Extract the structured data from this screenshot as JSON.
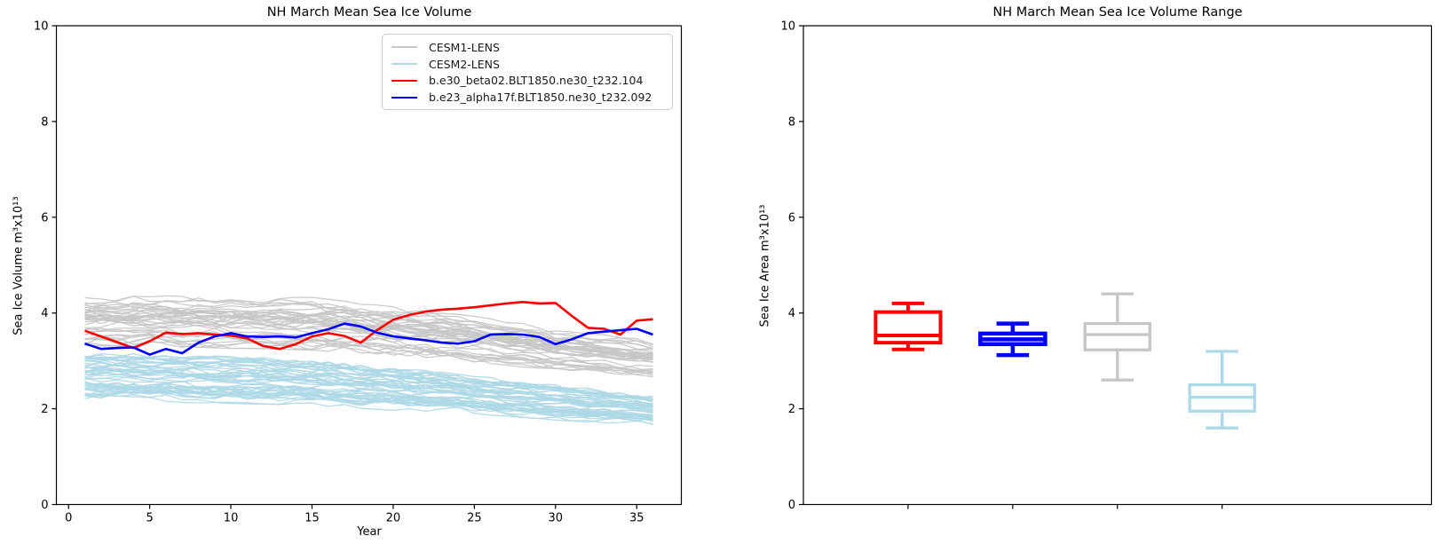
{
  "figure": {
    "background": "#ffffff"
  },
  "chart_data": [
    {
      "type": "line",
      "title": "NH March Mean Sea Ice Volume",
      "xlabel": "Year",
      "ylabel": "Sea Ice Volume m³x10¹³",
      "xlim": [
        -0.75,
        37.75
      ],
      "ylim": [
        0,
        10
      ],
      "xticks": [
        0,
        5,
        10,
        15,
        20,
        25,
        30,
        35
      ],
      "yticks": [
        0,
        2,
        4,
        6,
        8,
        10
      ],
      "grid": false,
      "legend_position": "upper right",
      "years": [
        1,
        2,
        3,
        4,
        5,
        6,
        7,
        8,
        9,
        10,
        11,
        12,
        13,
        14,
        15,
        16,
        17,
        18,
        19,
        20,
        21,
        22,
        23,
        24,
        25,
        26,
        27,
        28,
        29,
        30,
        31,
        32,
        33,
        34,
        35,
        36
      ],
      "series": [
        {
          "name": "CESM1-LENS",
          "kind": "ensemble",
          "color": "#c6c6c6",
          "members": 40,
          "band_min": [
            3.3,
            3.29,
            3.29,
            3.28,
            3.28,
            3.27,
            3.26,
            3.26,
            3.25,
            3.24,
            3.24,
            3.23,
            3.22,
            3.21,
            3.2,
            3.18,
            3.16,
            3.14,
            3.12,
            3.1,
            3.08,
            3.05,
            3.03,
            3.0,
            2.96,
            2.92,
            2.89,
            2.85,
            2.83,
            2.8,
            2.78,
            2.75,
            2.73,
            2.7,
            2.68,
            2.65
          ],
          "band_max": [
            4.4,
            4.4,
            4.39,
            4.39,
            4.38,
            4.38,
            4.37,
            4.37,
            4.36,
            4.36,
            4.36,
            4.35,
            4.35,
            4.35,
            4.35,
            4.31,
            4.27,
            4.23,
            4.19,
            4.15,
            4.11,
            4.07,
            4.04,
            4.0,
            3.95,
            3.9,
            3.85,
            3.8,
            3.75,
            3.7,
            3.65,
            3.6,
            3.56,
            3.52,
            3.48,
            3.45
          ]
        },
        {
          "name": "CESM2-LENS",
          "kind": "ensemble",
          "color": "#ADD8E6",
          "members": 50,
          "band_min": [
            2.15,
            2.14,
            2.14,
            2.13,
            2.12,
            2.12,
            2.11,
            2.1,
            2.1,
            2.09,
            2.08,
            2.08,
            2.07,
            2.06,
            2.05,
            2.03,
            2.01,
            1.99,
            1.97,
            1.95,
            1.94,
            1.93,
            1.91,
            1.9,
            1.88,
            1.85,
            1.83,
            1.8,
            1.78,
            1.75,
            1.73,
            1.7,
            1.69,
            1.68,
            1.66,
            1.65
          ],
          "band_max": [
            3.2,
            3.19,
            3.18,
            3.17,
            3.16,
            3.15,
            3.14,
            3.13,
            3.12,
            3.11,
            3.1,
            3.09,
            3.08,
            3.06,
            3.05,
            3.02,
            2.99,
            2.96,
            2.93,
            2.9,
            2.86,
            2.82,
            2.79,
            2.75,
            2.71,
            2.67,
            2.64,
            2.6,
            2.56,
            2.52,
            2.49,
            2.45,
            2.41,
            2.37,
            2.34,
            2.3
          ]
        },
        {
          "name": "b.e30_beta02.BLT1850.ne30_t232.104",
          "kind": "line",
          "color": "#ff0000",
          "values": [
            3.63,
            3.51,
            3.39,
            3.27,
            3.41,
            3.59,
            3.56,
            3.58,
            3.55,
            3.53,
            3.47,
            3.31,
            3.25,
            3.35,
            3.51,
            3.58,
            3.52,
            3.38,
            3.64,
            3.86,
            3.96,
            4.03,
            4.07,
            4.09,
            4.12,
            4.16,
            4.2,
            4.23,
            4.2,
            4.21,
            3.94,
            3.69,
            3.67,
            3.55,
            3.84,
            3.87
          ]
        },
        {
          "name": "b.e23_alpha17f.BLT1850.ne30_t232.092",
          "kind": "line",
          "color": "#0000ff",
          "values": [
            3.36,
            3.25,
            3.27,
            3.28,
            3.13,
            3.25,
            3.16,
            3.38,
            3.51,
            3.58,
            3.51,
            3.5,
            3.51,
            3.49,
            3.58,
            3.66,
            3.78,
            3.72,
            3.59,
            3.51,
            3.47,
            3.43,
            3.38,
            3.36,
            3.41,
            3.55,
            3.56,
            3.55,
            3.5,
            3.35,
            3.45,
            3.58,
            3.61,
            3.64,
            3.67,
            3.55
          ]
        }
      ]
    },
    {
      "type": "boxplot",
      "title": "NH March Mean Sea Ice Volume Range",
      "xlabel": "",
      "ylabel": "Sea Ice Area m³x10¹³",
      "xlim": [
        0,
        6
      ],
      "ylim": [
        0,
        10
      ],
      "yticks": [
        0,
        2,
        4,
        6,
        8,
        10
      ],
      "xtick_positions": [
        1,
        2,
        3,
        4
      ],
      "xtick_labels": [],
      "grid": false,
      "boxes": [
        {
          "legend_ref": "b.e30_beta02.BLT1850.ne30_t232.104",
          "color": "#ff0000",
          "position": 1,
          "whisker_low": 3.24,
          "q1": 3.38,
          "median": 3.53,
          "q3": 4.02,
          "whisker_high": 4.2,
          "line_width": 4
        },
        {
          "legend_ref": "b.e23_alpha17f.BLT1850.ne30_t232.092",
          "color": "#0000ff",
          "position": 2,
          "whisker_low": 3.12,
          "q1": 3.35,
          "median": 3.45,
          "q3": 3.57,
          "whisker_high": 3.78,
          "line_width": 4.5
        },
        {
          "legend_ref": "CESM1-LENS",
          "color": "#c6c6c6",
          "position": 3,
          "whisker_low": 2.6,
          "q1": 3.23,
          "median": 3.55,
          "q3": 3.78,
          "whisker_high": 4.4,
          "line_width": 3.3
        },
        {
          "legend_ref": "CESM2-LENS",
          "color": "#ADD8E6",
          "position": 4,
          "whisker_low": 1.6,
          "q1": 1.95,
          "median": 2.24,
          "q3": 2.5,
          "whisker_high": 3.2,
          "line_width": 3.3
        }
      ]
    }
  ]
}
